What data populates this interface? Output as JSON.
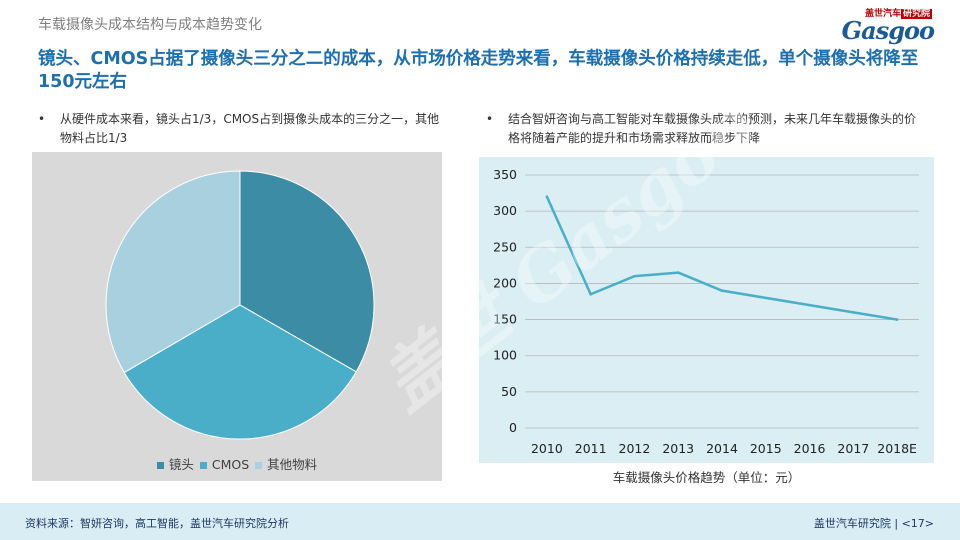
{
  "header": {
    "section_title": "车载摄像头成本结构与成本趋势变化",
    "logo_cn_brand": "盖世汽车",
    "logo_cn_tag": "研究院",
    "logo_en": "Gasgoo"
  },
  "headline": "镜头、CMOS占据了摄像头三分之二的成本，从市场价格走势来看，车载摄像头价格持续走低，单个摄像头将降至150元左右",
  "bullets": {
    "left": "从硬件成本来看，镜头占1/3，CMOS占到摄像头成本的三分之一，其他物料占比1/3",
    "right": "结合智妍咨询与高工智能对车载摄像头成本的预测，未来几年车载摄像头的价格将随着产能的提升和市场需求释放而稳步下降",
    "marker": "•"
  },
  "chart_data": [
    {
      "type": "pie",
      "categories": [
        "镜头",
        "CMOS",
        "其他物料"
      ],
      "values": [
        33.3,
        33.3,
        33.4
      ],
      "colors": [
        "#3c8ca6",
        "#4aaec9",
        "#a9d0df"
      ],
      "legend_position": "bottom"
    },
    {
      "type": "line",
      "categories": [
        "2010",
        "2011",
        "2012",
        "2013",
        "2014",
        "2015",
        "2016",
        "2017",
        "2018E"
      ],
      "values": [
        320,
        185,
        210,
        215,
        190,
        180,
        170,
        160,
        150
      ],
      "ylim": [
        0,
        350
      ],
      "yticks": [
        "0",
        "50",
        "100",
        "150",
        "200",
        "250",
        "300",
        "350"
      ],
      "grid": true,
      "color": "#4aaec9",
      "caption": "车载摄像头价格趋势（单位：元）"
    }
  ],
  "watermark": "盖世 Gasgoo",
  "footer": {
    "source": "资料来源：智妍咨询，高工智能，盖世汽车研究院分析",
    "org": "盖世汽车研究院",
    "page": "<17>"
  }
}
